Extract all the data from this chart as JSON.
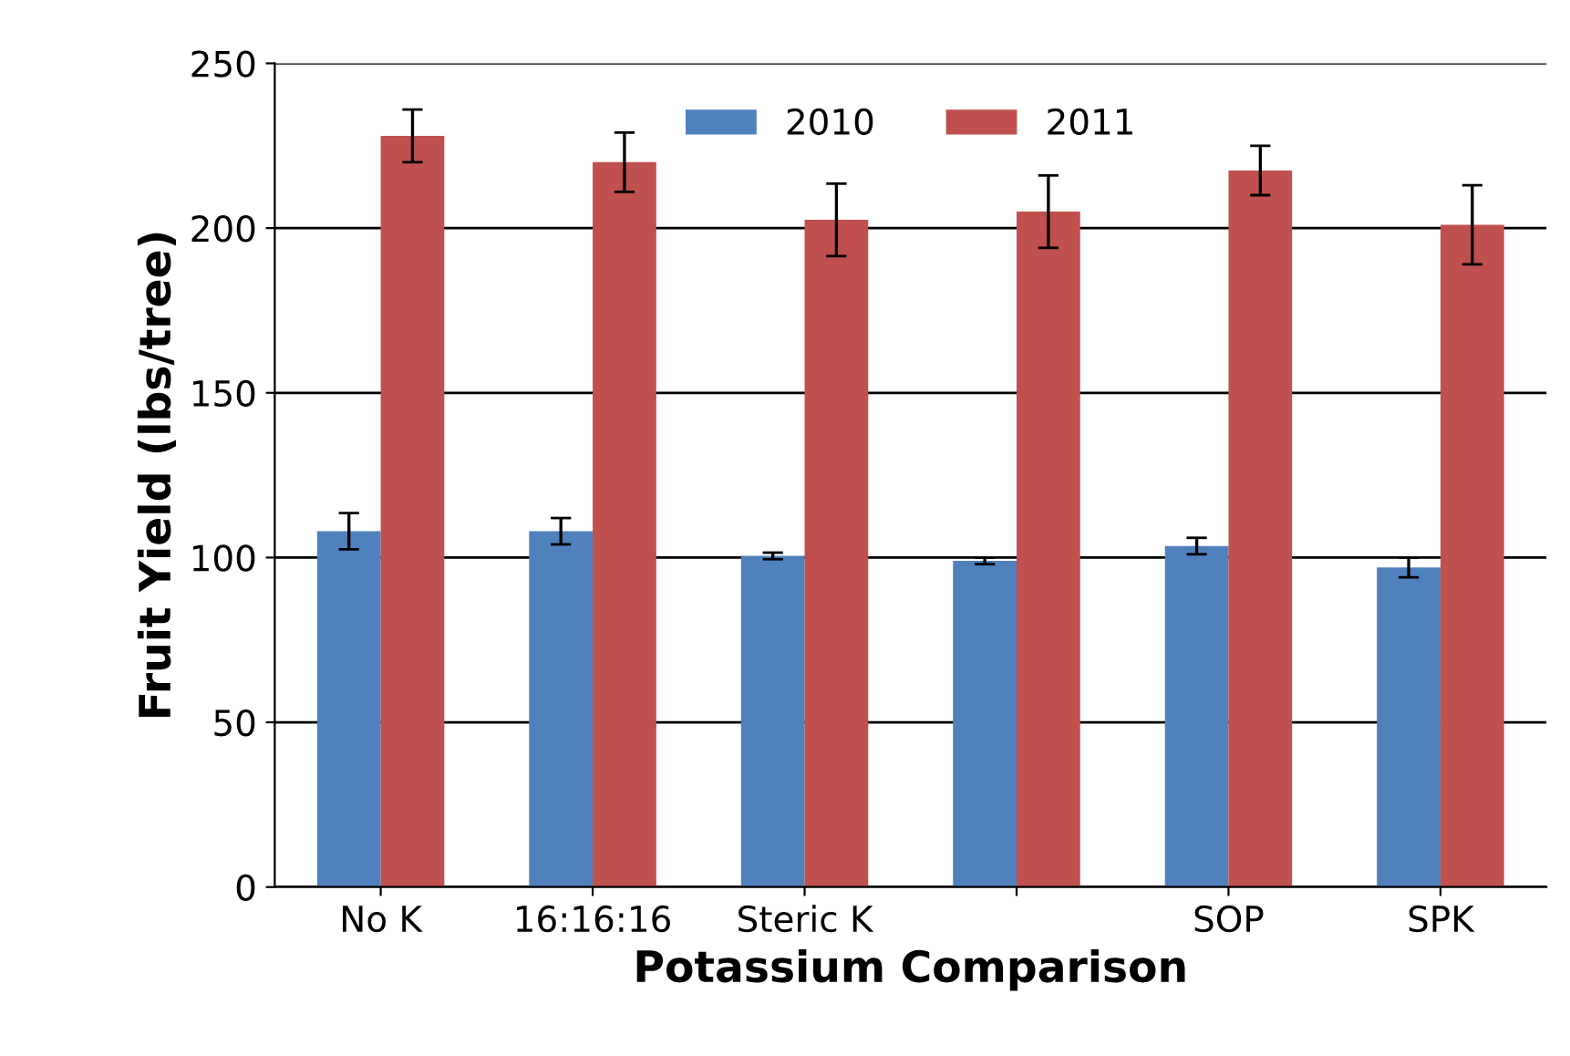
{
  "chart_data": {
    "type": "bar",
    "xlabel": "Potassium Comparison",
    "ylabel": "Fruit Yield (lbs/tree)",
    "categories": [
      "No K",
      "16:16:16",
      "Steric K",
      null,
      "SOP",
      "SPK"
    ],
    "series": [
      {
        "name": "2010",
        "color": "#4f81bd",
        "values": [
          108,
          108,
          100.5,
          99,
          103.5,
          97
        ],
        "errors": [
          5.5,
          4,
          1,
          1,
          2.5,
          3
        ]
      },
      {
        "name": "2011",
        "color": "#c0504d",
        "values": [
          228,
          220,
          202.5,
          205,
          217.5,
          201
        ],
        "errors": [
          8,
          9,
          11,
          11,
          7.5,
          12
        ]
      }
    ],
    "ylim": [
      0,
      250
    ],
    "yticks": [
      0,
      50,
      100,
      150,
      200,
      250
    ],
    "grid": "y",
    "legend": "top"
  }
}
